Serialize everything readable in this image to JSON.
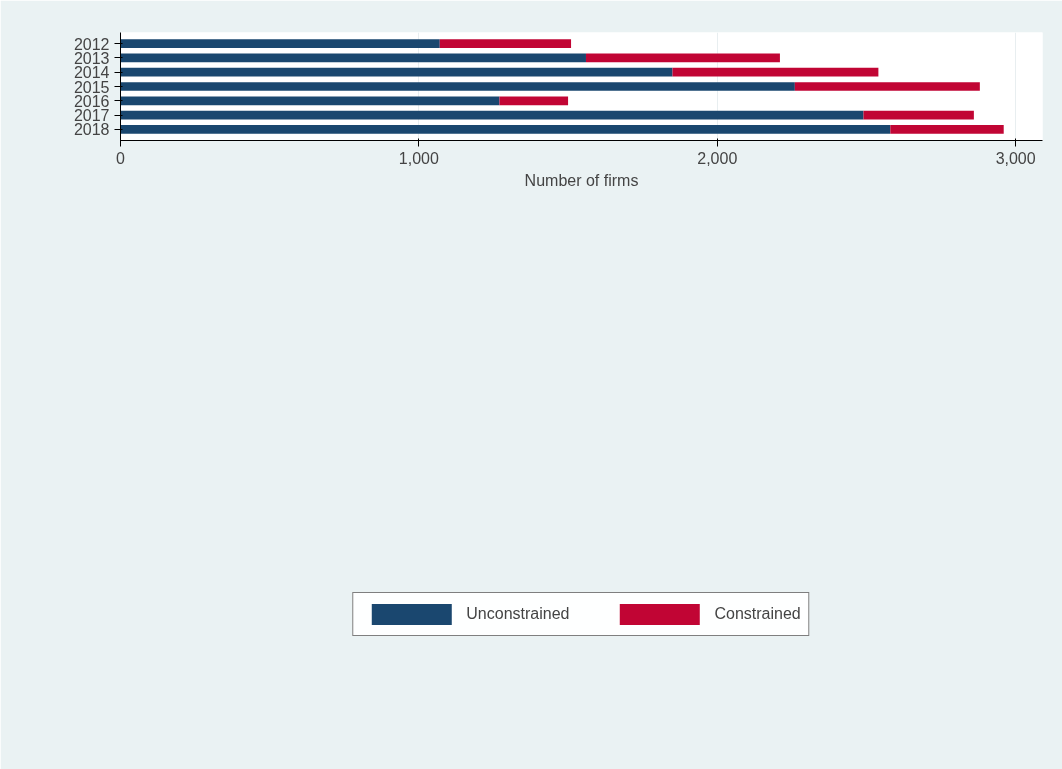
{
  "chart_data": {
    "type": "bar",
    "orientation": "horizontal",
    "stacked": true,
    "categories": [
      "2012",
      "2013",
      "2014",
      "2015",
      "2016",
      "2017",
      "2018"
    ],
    "series": [
      {
        "name": "Unconstrained",
        "color": "#1a476f",
        "values": [
          1070,
          1560,
          1850,
          2260,
          1270,
          2490,
          2580
        ]
      },
      {
        "name": "Constrained",
        "color": "#c10534",
        "values": [
          440,
          650,
          690,
          620,
          230,
          370,
          380
        ]
      }
    ],
    "xlabel": "Number of firms",
    "xlim": [
      0,
      3090
    ],
    "xticks": [
      {
        "value": 0,
        "label": "0"
      },
      {
        "value": 1000,
        "label": "1,000"
      },
      {
        "value": 2000,
        "label": "2,000"
      },
      {
        "value": 3000,
        "label": "3,000"
      }
    ],
    "grid": "x",
    "legend": "bottom"
  }
}
